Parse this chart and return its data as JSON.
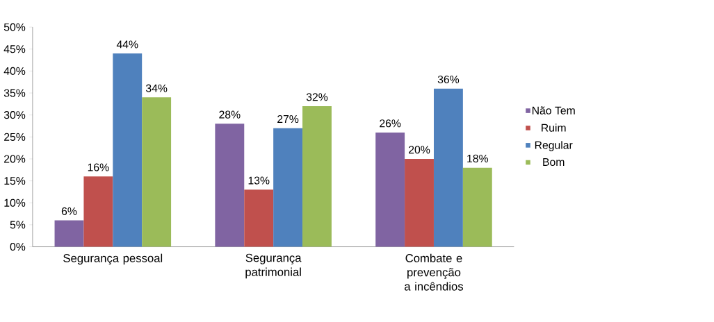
{
  "chart_data": {
    "type": "bar",
    "categories": [
      "Segurança pessoal",
      "Segurança patrimonial",
      "Combate e prevenção a incêndios"
    ],
    "series": [
      {
        "name": "Não Tem",
        "color": "#8064a2",
        "values": [
          6,
          28,
          26
        ],
        "value_labels": [
          "6%",
          "28%",
          "26%"
        ]
      },
      {
        "name": "Ruim",
        "color": "#c0504d",
        "values": [
          16,
          13,
          20
        ],
        "value_labels": [
          "16%",
          "13%",
          "20%"
        ]
      },
      {
        "name": "Regular",
        "color": "#4f81bd",
        "values": [
          44,
          27,
          36
        ],
        "value_labels": [
          "44%",
          "27%",
          "36%"
        ]
      },
      {
        "name": "Bom",
        "color": "#9bbb59",
        "values": [
          34,
          32,
          18
        ],
        "value_labels": [
          "34%",
          "32%",
          "18%"
        ]
      }
    ],
    "ylim": [
      0,
      50
    ],
    "yticks": [
      {
        "value": 0,
        "label": "0%"
      },
      {
        "value": 5,
        "label": "5%"
      },
      {
        "value": 10,
        "label": "10%"
      },
      {
        "value": 15,
        "label": "15%"
      },
      {
        "value": 20,
        "label": "20%"
      },
      {
        "value": 25,
        "label": "25%"
      },
      {
        "value": 30,
        "label": "30%"
      },
      {
        "value": 35,
        "label": "35%"
      },
      {
        "value": 40,
        "label": "40%"
      },
      {
        "value": 45,
        "label": "45%"
      },
      {
        "value": 50,
        "label": "50%"
      }
    ],
    "grid": false,
    "legend": "right"
  }
}
